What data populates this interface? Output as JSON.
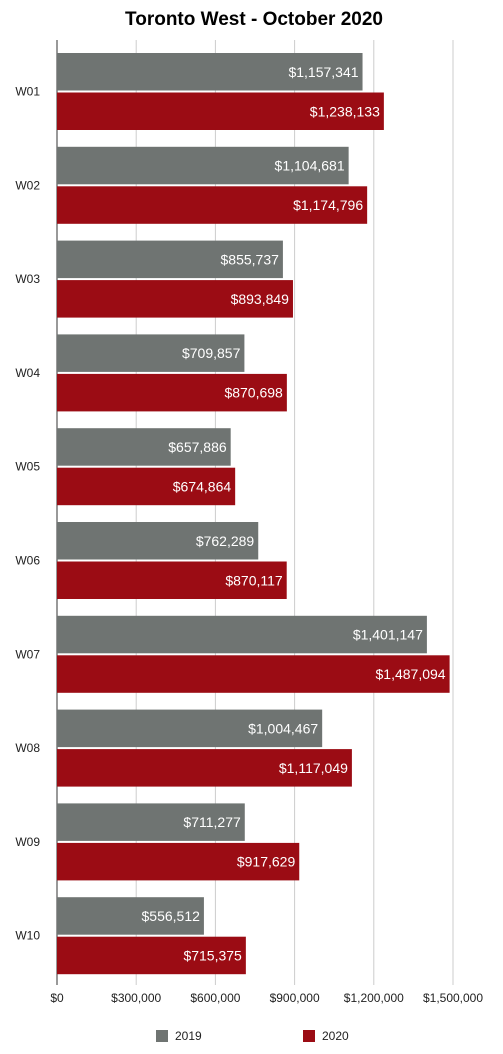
{
  "chart_data": {
    "type": "bar",
    "orientation": "horizontal",
    "title": "Toronto West - October 2020",
    "categories": [
      "W01",
      "W02",
      "W03",
      "W04",
      "W05",
      "W06",
      "W07",
      "W08",
      "W09",
      "W10"
    ],
    "series": [
      {
        "name": "2019",
        "color": "#6f7472",
        "values": [
          1157341,
          1104681,
          855737,
          709857,
          657886,
          762289,
          1401147,
          1004467,
          711277,
          556512
        ],
        "labels": [
          "$1,157,341",
          "$1,104,681",
          "$855,737",
          "$709,857",
          "$657,886",
          "$762,289",
          "$1,401,147",
          "$1,004,467",
          "$711,277",
          "$556,512"
        ]
      },
      {
        "name": "2020",
        "color": "#9b0c14",
        "values": [
          1238133,
          1174796,
          893849,
          870698,
          674864,
          870117,
          1487094,
          1117049,
          917629,
          715375
        ],
        "labels": [
          "$1,238,133",
          "$1,174,796",
          "$893,849",
          "$870,698",
          "$674,864",
          "$870,117",
          "$1,487,094",
          "$1,117,049",
          "$917,629",
          "$715,375"
        ]
      }
    ],
    "xlim": [
      0,
      1500000
    ],
    "xticks": [
      0,
      300000,
      600000,
      900000,
      1200000,
      1500000
    ],
    "xtick_labels": [
      "$0",
      "$300,000",
      "$600,000",
      "$900,000",
      "$1,200,000",
      "$1,500,000"
    ],
    "grid": true,
    "legend_position": "bottom"
  }
}
